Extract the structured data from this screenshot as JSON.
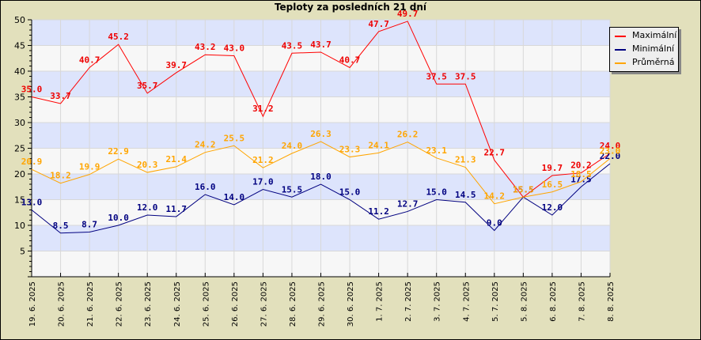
{
  "chart_data": {
    "type": "line",
    "title": "Teploty za posledních 21 dní",
    "xlabel": "",
    "ylabel": "",
    "ylim": [
      0,
      50
    ],
    "yticks": [
      5,
      10,
      15,
      20,
      25,
      30,
      35,
      40,
      45,
      50
    ],
    "grid": true,
    "legend_position": "top-right, outside plot",
    "categories": [
      "19. 6. 2025",
      "20. 6. 2025",
      "21. 6. 2025",
      "22. 6. 2025",
      "23. 6. 2025",
      "24. 6. 2025",
      "25. 6. 2025",
      "26. 6. 2025",
      "27. 6. 2025",
      "28. 6. 2025",
      "29. 6. 2025",
      "30. 6. 2025",
      "1. 7. 2025",
      "2. 7. 2025",
      "3. 7. 2025",
      "4. 7. 2025",
      "5. 7. 2025",
      "5. 8. 2025",
      "6. 8. 2025",
      "7. 8. 2025",
      "8. 8. 2025"
    ],
    "series": [
      {
        "name": "Maximální",
        "color": "#ff0000",
        "label_color": "#ee0000",
        "values": [
          35.0,
          33.7,
          40.7,
          45.2,
          35.7,
          39.7,
          43.2,
          43.0,
          31.2,
          43.5,
          43.7,
          40.7,
          47.7,
          49.7,
          37.5,
          37.5,
          22.7,
          15.5,
          19.7,
          20.2,
          24.0
        ]
      },
      {
        "name": "Minimální",
        "color": "#000080",
        "label_color": "#000080",
        "values": [
          13.0,
          8.5,
          8.7,
          10.0,
          12.0,
          11.7,
          16.0,
          14.0,
          17.0,
          15.5,
          18.0,
          15.0,
          11.2,
          12.7,
          15.0,
          14.5,
          9.0,
          15.5,
          12.0,
          17.5,
          22.0
        ]
      },
      {
        "name": "Průměrná",
        "color": "#ffa500",
        "label_color": "#ffa500",
        "values": [
          20.9,
          18.2,
          19.9,
          22.9,
          20.3,
          21.4,
          24.2,
          25.5,
          21.2,
          24.0,
          26.3,
          23.3,
          24.1,
          26.2,
          23.1,
          21.3,
          14.2,
          15.5,
          16.5,
          18.5,
          23.0
        ]
      }
    ]
  },
  "colors": {
    "background": "#e2e0bc",
    "band_blue": "#dde4fc",
    "band_white": "#f7f7f7",
    "grid": "#d8d8d8"
  },
  "legend": {
    "items": [
      {
        "label": "Maximální",
        "color": "#ff0000"
      },
      {
        "label": "Minimální",
        "color": "#000080"
      },
      {
        "label": "Průměrná",
        "color": "#ffa500"
      }
    ]
  }
}
